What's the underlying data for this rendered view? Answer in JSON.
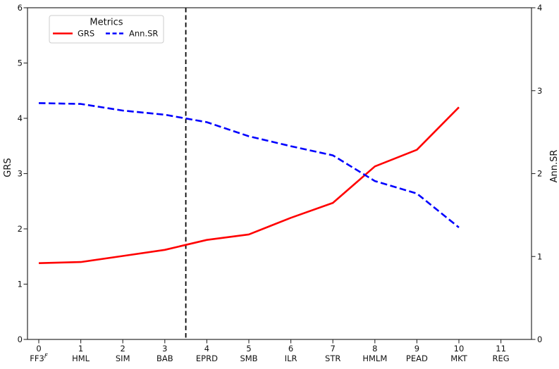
{
  "chart_data": {
    "type": "line",
    "title": "",
    "x_tick_labels": [
      "0",
      "1",
      "2",
      "3",
      "4",
      "5",
      "6",
      "7",
      "8",
      "9",
      "10",
      "11"
    ],
    "x_category_labels": [
      "FF3^F",
      "HML",
      "SIM",
      "BAB",
      "EPRD",
      "SMB",
      "ILR",
      "STR",
      "HMLM",
      "PEAD",
      "MKT",
      "REG"
    ],
    "x": [
      0,
      1,
      2,
      3,
      4,
      5,
      6,
      7,
      8,
      9,
      10
    ],
    "series": [
      {
        "name": "GRS",
        "yaxis": "left",
        "color": "#ff0000",
        "linestyle": "solid",
        "values": [
          1.38,
          1.4,
          1.51,
          1.62,
          1.8,
          1.9,
          2.2,
          2.47,
          3.13,
          3.43,
          4.2
        ]
      },
      {
        "name": "Ann.SR",
        "yaxis": "right",
        "color": "#0000ff",
        "linestyle": "dashed",
        "values": [
          2.85,
          2.84,
          2.76,
          2.71,
          2.62,
          2.45,
          2.33,
          2.22,
          1.91,
          1.76,
          1.35
        ]
      }
    ],
    "vline": {
      "x": 3.5,
      "color": "#000000",
      "linestyle": "dashed"
    },
    "ylabel_left": "GRS",
    "ylabel_right": "Ann.SR",
    "ylabel_left_color": "#ff0000",
    "ylabel_right_color": "#0000ff",
    "ylim_left": [
      0,
      6
    ],
    "ylim_right": [
      0,
      4
    ],
    "yticks_left": [
      "0",
      "1",
      "2",
      "3",
      "4",
      "5",
      "6"
    ],
    "yticks_right": [
      "0",
      "1",
      "2",
      "3",
      "4"
    ],
    "legend": {
      "title": "Metrics",
      "position": "upper-left",
      "entries": [
        "GRS",
        "Ann.SR"
      ]
    },
    "grid": false,
    "background": "#ffffff"
  }
}
